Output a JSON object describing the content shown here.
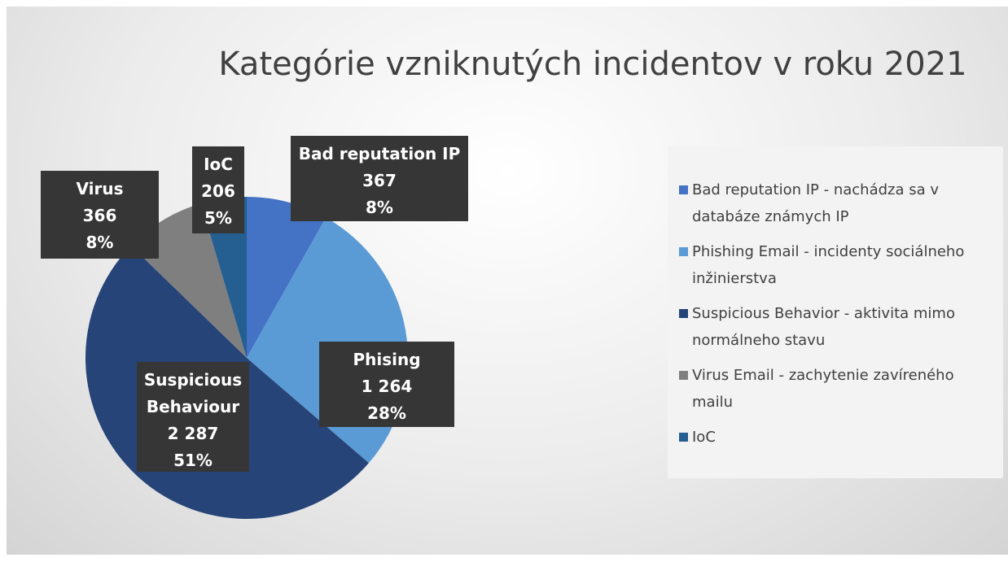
{
  "chart_data": {
    "type": "pie",
    "title": "Kategórie vzniknutých incidentov v roku 2021",
    "categories": [
      "Bad reputation IP - nachádza sa v databáze známych IP",
      "Phishing Email - incidenty sociálneho inžinierstva",
      "Suspicious Behavior - aktivita mimo normálneho stavu",
      "Virus Email - zachytenie zavíreného mailu",
      "IoC"
    ],
    "label_names": [
      "Bad reputation IP",
      "Phising",
      "Suspicious Behaviour",
      "Virus",
      "IoC"
    ],
    "values": [
      367,
      1264,
      2287,
      366,
      206
    ],
    "value_labels": [
      "367",
      "1 264",
      "2 287",
      "366",
      "206"
    ],
    "percents": [
      8,
      28,
      51,
      8,
      5
    ],
    "percent_labels": [
      "8%",
      "28%",
      "51%",
      "8%",
      "5%"
    ],
    "colors": [
      "#4472c4",
      "#5b9bd5",
      "#264478",
      "#7f7f7f",
      "#255e91"
    ],
    "legend": "right"
  }
}
